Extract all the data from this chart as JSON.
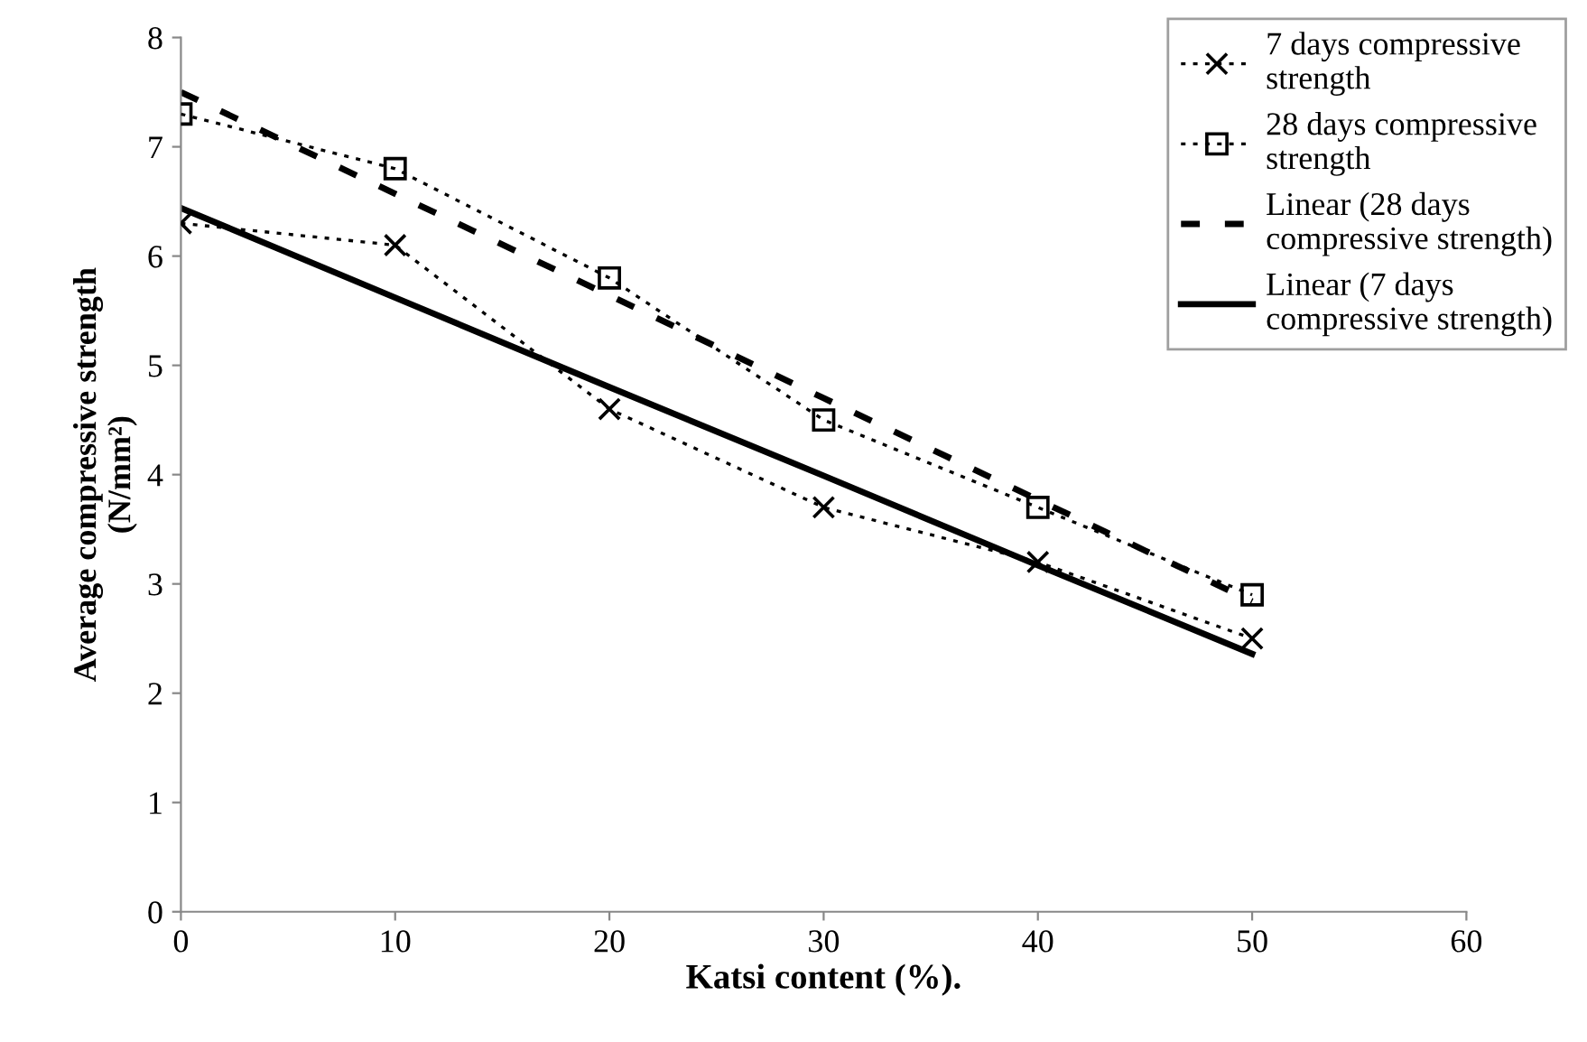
{
  "chart_data": {
    "type": "line",
    "xlabel": "Katsi content (%).",
    "ylabel": "Average compressive strength\n(N/mm²)",
    "x": [
      0,
      10,
      20,
      30,
      40,
      50
    ],
    "series": [
      {
        "name": "7 days compressive\nstrength",
        "color": "#000000",
        "values": [
          6.3,
          6.1,
          4.6,
          3.7,
          3.2,
          2.5
        ],
        "marker": "cross",
        "line_style": "dotted"
      },
      {
        "name": "28 days compressive\nstrength",
        "color": "#000000",
        "values": [
          7.3,
          6.8,
          5.8,
          4.5,
          3.7,
          2.9
        ],
        "marker": "square",
        "line_style": "dotted"
      },
      {
        "name": "Linear (28 days\ncompressive strength)",
        "color": "#000000",
        "values": [
          7.5,
          6.57,
          5.64,
          4.7,
          3.77,
          2.84
        ],
        "marker": "none",
        "line_style": "dashed"
      },
      {
        "name": "Linear (7 days\ncompressive strength)",
        "color": "#000000",
        "values": [
          6.44,
          5.62,
          4.8,
          3.99,
          3.17,
          2.36
        ],
        "marker": "none",
        "line_style": "solid"
      }
    ],
    "xlim": [
      0,
      60
    ],
    "xticks": [
      0,
      10,
      20,
      30,
      40,
      50,
      60
    ],
    "ylim": [
      0,
      8
    ],
    "yticks": [
      0,
      1,
      2,
      3,
      4,
      5,
      6,
      7,
      8
    ],
    "grid": false,
    "legend": "top right"
  }
}
